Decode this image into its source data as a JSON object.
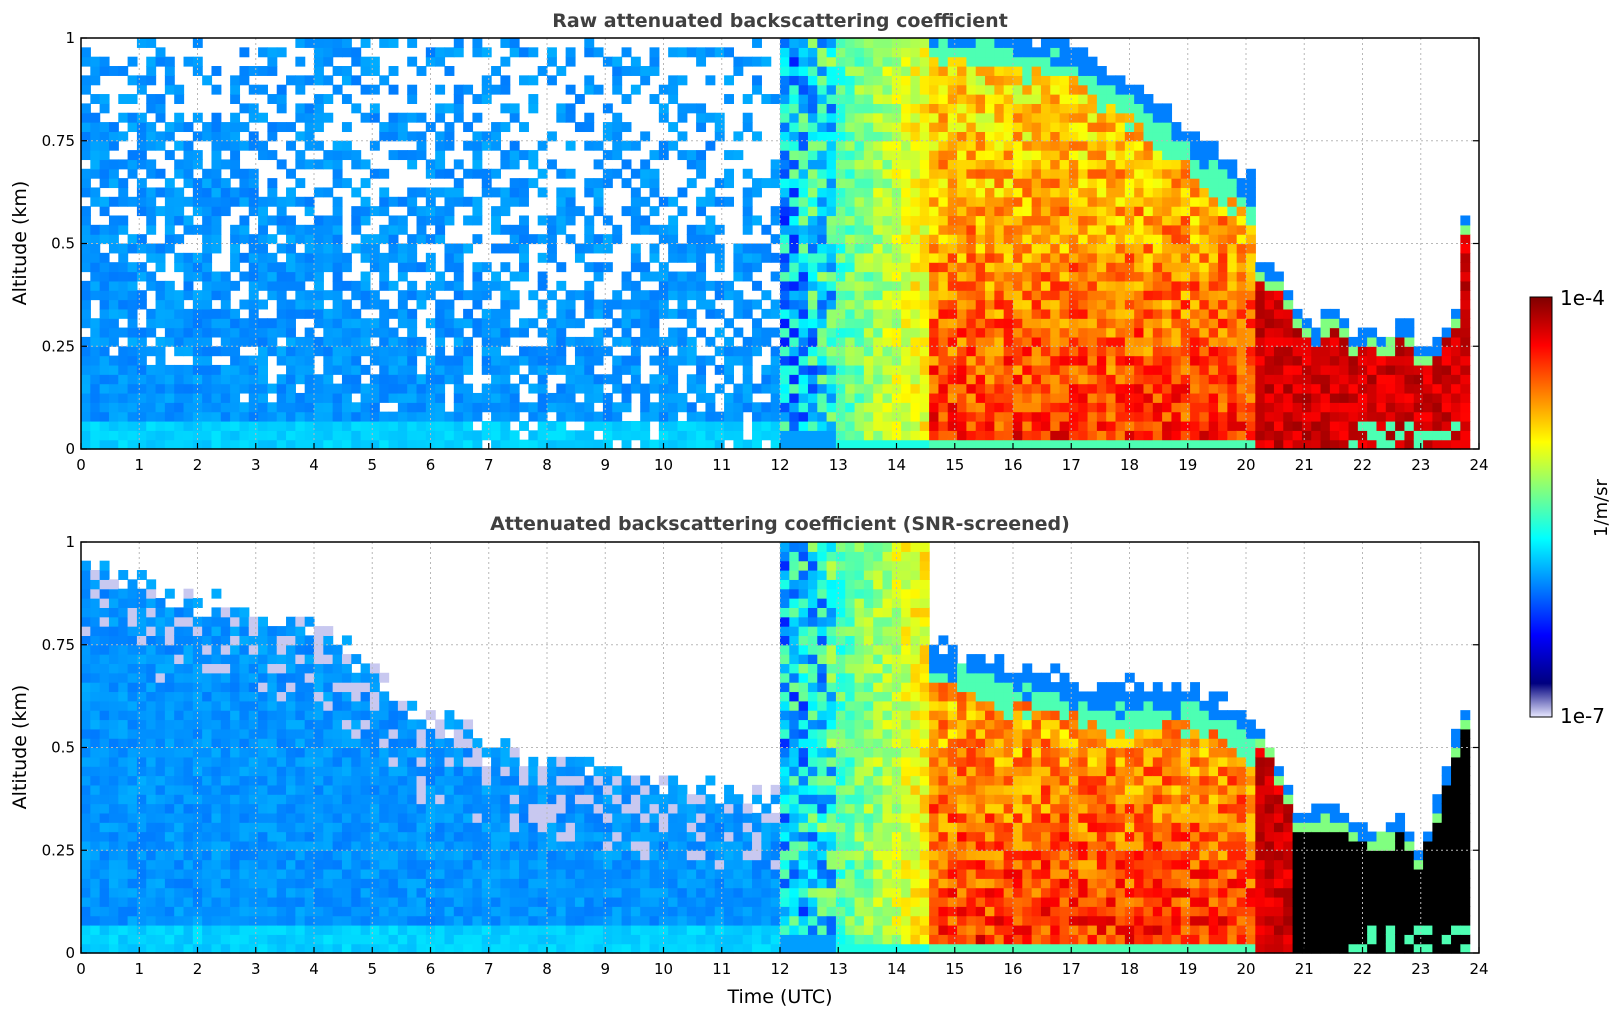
{
  "colors": {
    "jet": [
      "#00007f",
      "#0000ff",
      "#0080ff",
      "#00ffff",
      "#80ff80",
      "#ffff00",
      "#ff8000",
      "#ff0000",
      "#7f0000"
    ],
    "low_end": "#e8e8ff",
    "saturated": "#000000"
  },
  "chart_data": [
    {
      "type": "heatmap",
      "title": "Raw attenuated backscattering coefficient",
      "xlabel": "",
      "ylabel": "Altitude (km)",
      "xlim": [
        0,
        24
      ],
      "ylim": [
        0,
        1
      ],
      "xticks": [
        "0",
        "1",
        "2",
        "3",
        "4",
        "5",
        "6",
        "7",
        "8",
        "9",
        "10",
        "11",
        "12",
        "13",
        "14",
        "15",
        "16",
        "17",
        "18",
        "19",
        "20",
        "21",
        "22",
        "23",
        "24"
      ],
      "yticks": [
        "0",
        "0.25",
        "0.5",
        "0.75",
        "1"
      ],
      "grid": true,
      "cloud_top_km": [
        [
          20.3,
          0.45
        ],
        [
          20.6,
          0.43
        ],
        [
          20.9,
          0.34
        ],
        [
          21.2,
          0.3
        ],
        [
          21.5,
          0.36
        ],
        [
          21.8,
          0.28
        ],
        [
          22.1,
          0.3
        ],
        [
          22.4,
          0.27
        ],
        [
          22.7,
          0.33
        ],
        [
          23.0,
          0.25
        ],
        [
          23.3,
          0.27
        ],
        [
          23.6,
          0.35
        ],
        [
          23.8,
          0.62
        ]
      ]
    },
    {
      "type": "heatmap",
      "title": "Attenuated backscattering coefficient (SNR-screened)",
      "xlabel": "Time (UTC)",
      "ylabel": "Altitude (km)",
      "xlim": [
        0,
        24
      ],
      "ylim": [
        0,
        1
      ],
      "xticks": [
        "0",
        "1",
        "2",
        "3",
        "4",
        "5",
        "6",
        "7",
        "8",
        "9",
        "10",
        "11",
        "12",
        "13",
        "14",
        "15",
        "16",
        "17",
        "18",
        "19",
        "20",
        "21",
        "22",
        "23",
        "24"
      ],
      "yticks": [
        "0",
        "0.25",
        "0.5",
        "0.75",
        "1"
      ],
      "grid": true,
      "noise_screen_top_km": [
        [
          0,
          0.95
        ],
        [
          2,
          0.85
        ],
        [
          4,
          0.8
        ],
        [
          5.5,
          0.62
        ],
        [
          7,
          0.5
        ],
        [
          9,
          0.45
        ],
        [
          11,
          0.38
        ],
        [
          12,
          0.38
        ]
      ],
      "cloud_top_km": [
        [
          14.5,
          0.75
        ],
        [
          17.5,
          0.65
        ],
        [
          19.0,
          0.65
        ],
        [
          20.3,
          0.55
        ],
        [
          20.9,
          0.34
        ],
        [
          21.5,
          0.36
        ],
        [
          22.1,
          0.3
        ],
        [
          22.7,
          0.33
        ],
        [
          23.0,
          0.25
        ],
        [
          23.8,
          0.62
        ]
      ]
    }
  ],
  "colorbar": {
    "max_label": "1e-4",
    "min_label": "1e-7",
    "label": "1/m/sr",
    "scale": "log",
    "range": [
      1e-07,
      0.0001
    ]
  }
}
